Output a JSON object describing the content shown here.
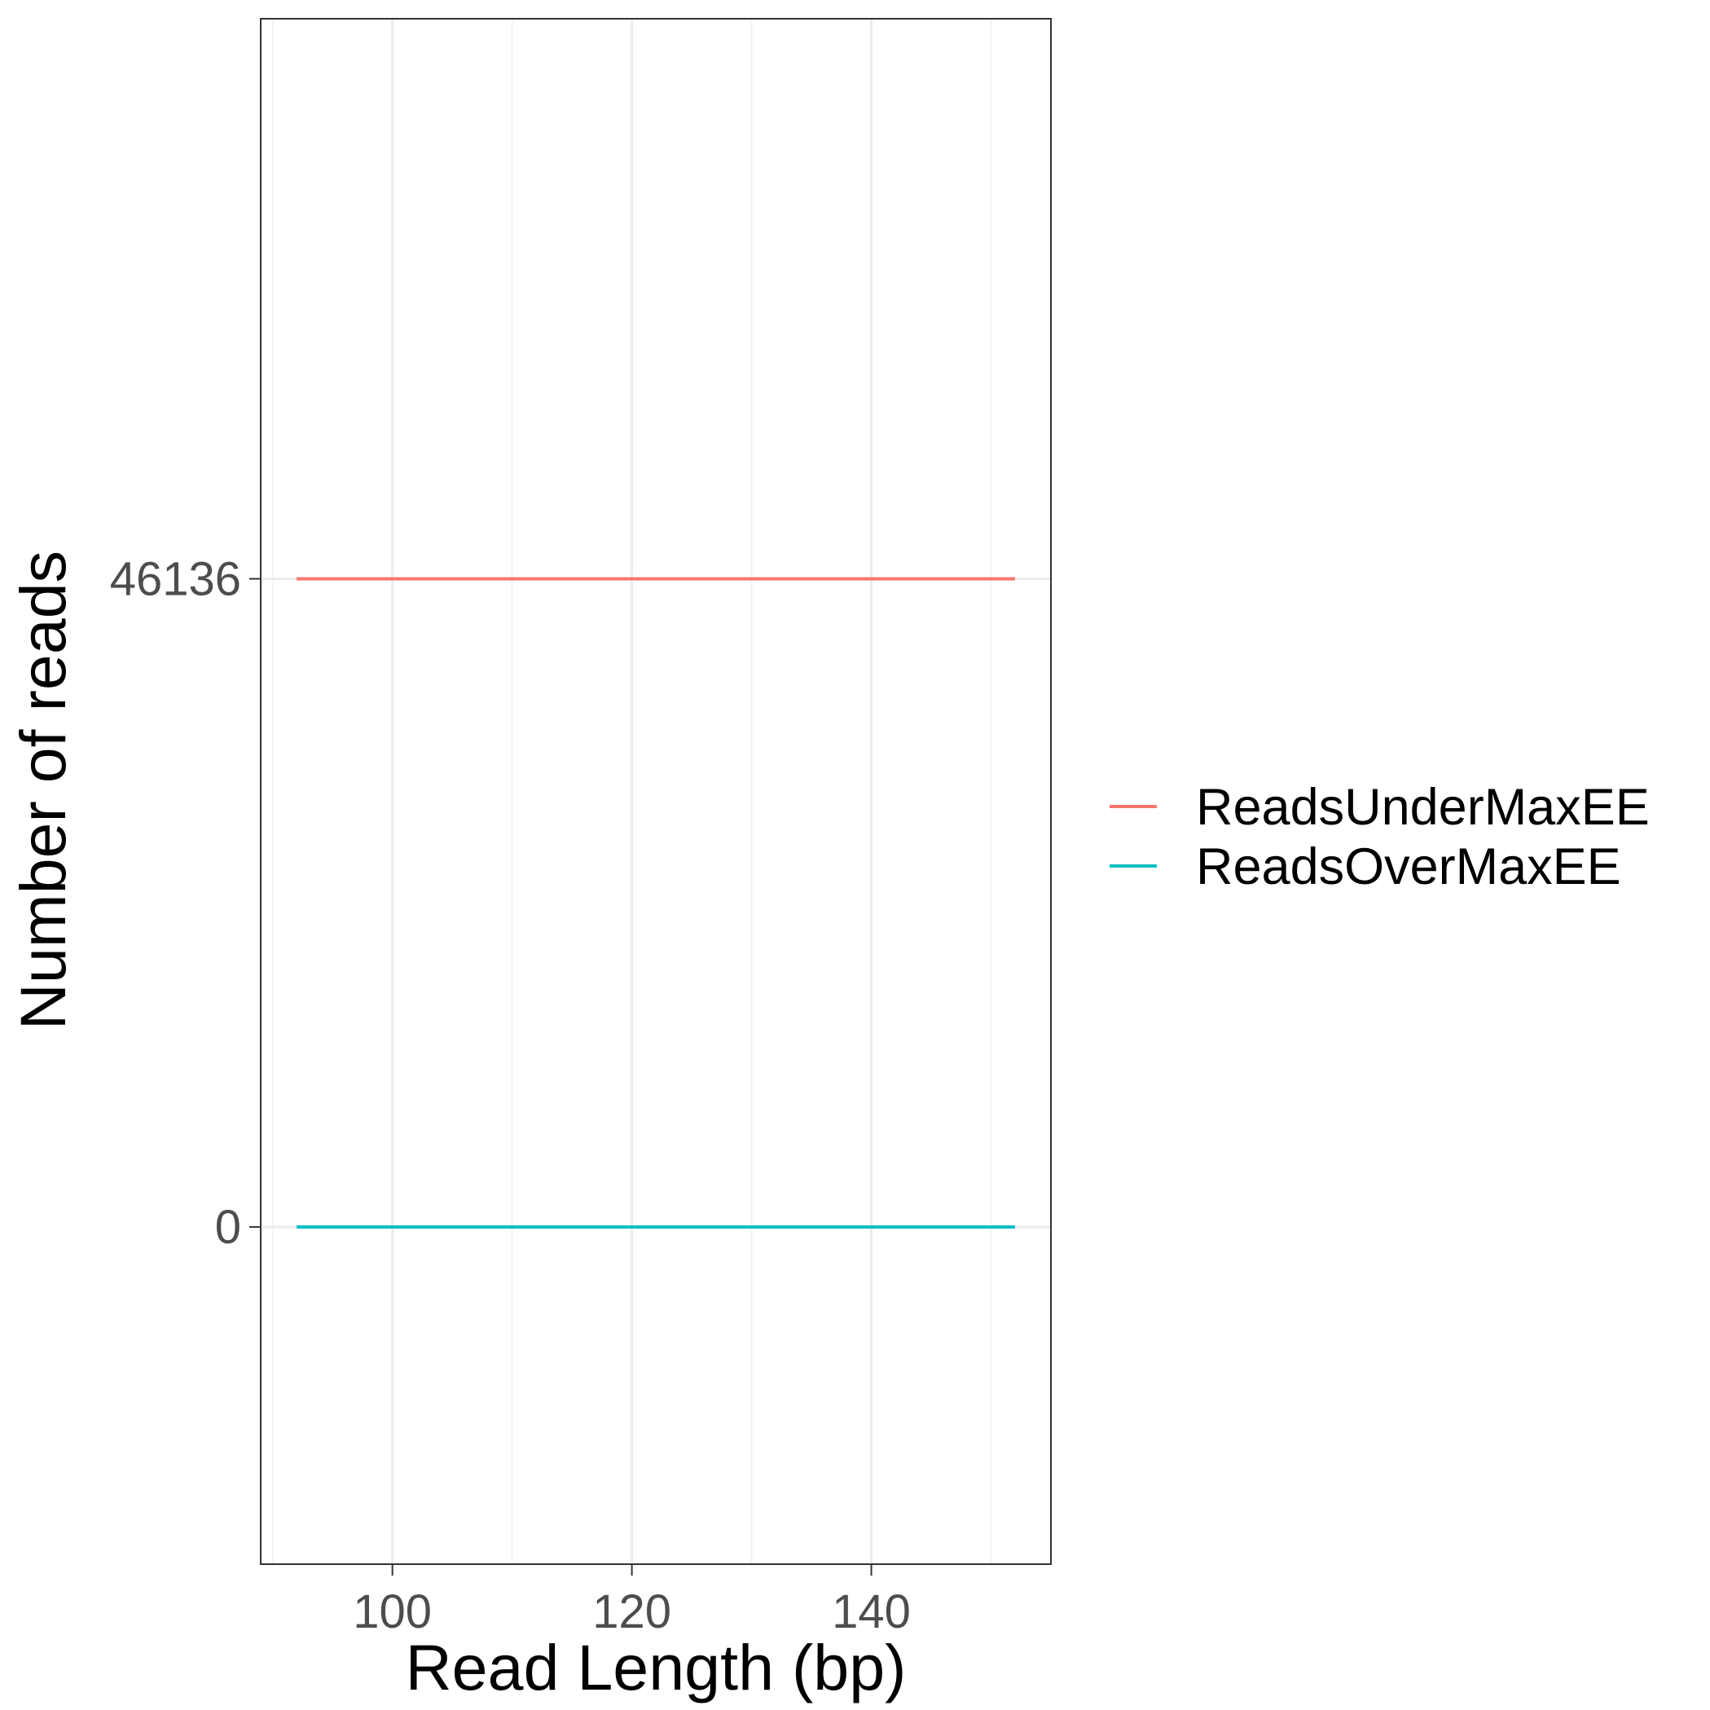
{
  "chart_data": {
    "type": "line",
    "title": "",
    "xlabel": "Read Length (bp)",
    "ylabel": "Number of reads",
    "xlim": [
      89,
      155
    ],
    "ylim": [
      -24000,
      86000
    ],
    "x_ticks": [
      100,
      120,
      140
    ],
    "x_tick_labels": [
      "100",
      "120",
      "140"
    ],
    "x_minor_ticks": [
      90,
      110,
      130,
      150
    ],
    "y_ticks": [
      0,
      46136
    ],
    "y_tick_labels": [
      "0",
      "46136"
    ],
    "grid": true,
    "legend_position": "right",
    "series": [
      {
        "name": "ReadsUnderMaxEE",
        "color": "#F8766D",
        "x": [
          92,
          152
        ],
        "y": [
          46136,
          46136
        ]
      },
      {
        "name": "ReadsOverMaxEE",
        "color": "#00BFC4",
        "x": [
          92,
          152
        ],
        "y": [
          0,
          0
        ]
      }
    ]
  },
  "colors": {
    "panel_border": "#333333",
    "grid_major": "#EBEBEB",
    "grid_minor": "#F2F2F2",
    "tick_text": "#4D4D4D"
  }
}
